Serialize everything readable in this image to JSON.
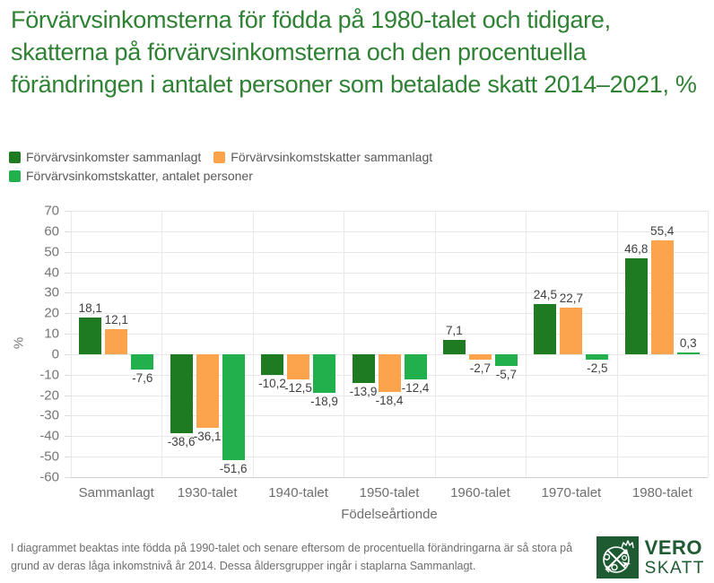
{
  "title": "Förvärvsinkomsterna för födda på 1980-talet och tidigare, skatterna på förvärvsinkomsterna och den procentuella förändringen i antalet personer som betalade skatt 2014–2021, %",
  "chart_data": {
    "type": "bar",
    "categories": [
      "Sammanlagt",
      "1930-talet",
      "1940-talet",
      "1950-talet",
      "1960-talet",
      "1970-talet",
      "1980-talet"
    ],
    "series": [
      {
        "name": "Förvärvsinkomster sammanlagt",
        "color": "#1e7b22",
        "values": [
          18.1,
          -38.6,
          -10.2,
          -13.9,
          7.1,
          24.5,
          46.8
        ]
      },
      {
        "name": "Förvärvsinkomstskatter sammanlagt",
        "color": "#fba44c",
        "values": [
          12.1,
          -36.1,
          -12.5,
          -18.4,
          -2.7,
          22.7,
          55.4
        ]
      },
      {
        "name": "Förvärvsinkomstskatter, antalet personer",
        "color": "#22b04c",
        "values": [
          -7.6,
          -51.6,
          -18.9,
          -12.4,
          -5.7,
          -2.5,
          0.3
        ]
      }
    ],
    "xlabel": "Födelseårtionde",
    "ylabel": "%",
    "ylim": [
      -60,
      70
    ],
    "ytick_step": 10,
    "grid": true,
    "legend_position": "top",
    "decimal_separator": ","
  },
  "footnote": "I diagrammet beaktas inte födda på 1990-talet och senare eftersom de procentuella förändringarna är så stora på grund av deras låga inkomstnivå år 2014. Dessa åldersgrupper ingår i staplarna Sammanlagt.",
  "logo": {
    "line1": "VERO",
    "line2": "SKATT",
    "box_color": "#1e5b33",
    "text_color": "#1e5b33"
  },
  "colors": {
    "title": "#2f8133",
    "axis_text": "#757575",
    "grid": "#e7e7e7",
    "value_label": "#3f3f3f"
  }
}
